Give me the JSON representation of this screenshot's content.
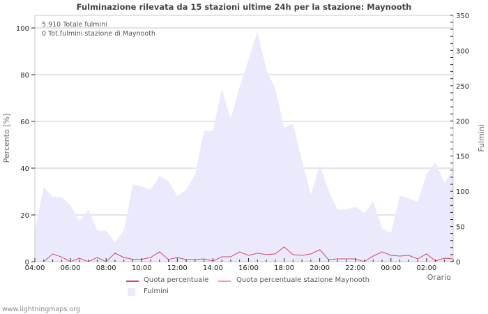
{
  "title": "Fulminazione rilevata da 15 stazioni ultime 24h per la stazione: Maynooth",
  "info": {
    "total": "5.910 Totale fulmini",
    "station_total": "0 Tot.fulmini stazione di Maynooth"
  },
  "axes": {
    "left_title": "Percento   [%]",
    "right_title": "Fulmini",
    "x_title": "Orario",
    "left_ticks": [
      "0",
      "20",
      "40",
      "60",
      "80",
      "100"
    ],
    "right_ticks": [
      "0",
      "50",
      "100",
      "150",
      "200",
      "250",
      "300",
      "350"
    ],
    "x_ticks": [
      "04:00",
      "06:00",
      "08:00",
      "10:00",
      "12:00",
      "14:00",
      "16:00",
      "18:00",
      "20:00",
      "22:00",
      "00:00",
      "02:00"
    ]
  },
  "legend": {
    "quota": "Quota percentuale",
    "quota_station": "Quota percentuale stazione Maynooth",
    "fulmini": "Fulmini"
  },
  "footer": "www.lightningmaps.org",
  "colors": {
    "quota_line": "#d04a63",
    "quota_station_line": "#f4a0a0",
    "fulmini_fill": "#eaeafc",
    "grid": "#c8c8c8"
  },
  "chart_data": {
    "type": "area",
    "title": "Fulminazione rilevata da 15 stazioni ultime 24h per la stazione: Maynooth",
    "xlabel": "Orario",
    "ylabel": "Percento [%]",
    "y2label": "Fulmini",
    "ylim": [
      0,
      105
    ],
    "y2lim": [
      0,
      350
    ],
    "grid": true,
    "legend_position": "bottom",
    "x": [
      "04:00",
      "04:30",
      "05:00",
      "05:30",
      "06:00",
      "06:30",
      "07:00",
      "07:30",
      "08:00",
      "08:30",
      "09:00",
      "09:30",
      "10:00",
      "10:30",
      "11:00",
      "11:30",
      "12:00",
      "12:30",
      "13:00",
      "13:30",
      "14:00",
      "14:30",
      "15:00",
      "15:30",
      "16:00",
      "16:30",
      "17:00",
      "17:30",
      "18:00",
      "18:30",
      "19:00",
      "19:30",
      "20:00",
      "20:30",
      "21:00",
      "21:30",
      "22:00",
      "22:30",
      "23:00",
      "23:30",
      "00:00",
      "00:30",
      "01:00",
      "01:30",
      "02:00",
      "02:30",
      "03:00",
      "03:30"
    ],
    "series": [
      {
        "name": "Fulmini",
        "axis": "right",
        "type": "area",
        "values": [
          44,
          106,
          92,
          92,
          80,
          58,
          74,
          44,
          44,
          28,
          44,
          110,
          107,
          102,
          122,
          115,
          93,
          102,
          124,
          186,
          186,
          245,
          203,
          248,
          287,
          327,
          273,
          246,
          191,
          196,
          144,
          95,
          137,
          101,
          74,
          74,
          78,
          69,
          86,
          47,
          41,
          94,
          90,
          85,
          124,
          141,
          112,
          131
        ]
      },
      {
        "name": "Quota percentuale",
        "axis": "left",
        "type": "line",
        "values": [
          null,
          0,
          3.3,
          2,
          0,
          1.5,
          0,
          1.8,
          0,
          3.6,
          1.8,
          1,
          1,
          1.8,
          4.2,
          0.9,
          1.8,
          0.9,
          0.9,
          1.2,
          0.3,
          2.1,
          2.1,
          4.2,
          2.7,
          3.6,
          3,
          3.3,
          6.3,
          3,
          2.7,
          3.3,
          5.1,
          0.9,
          1.2,
          1.2,
          1.2,
          0,
          2.4,
          4.2,
          2.7,
          2.4,
          2.7,
          1.2,
          3.3,
          0.3,
          1.5,
          1.2
        ]
      },
      {
        "name": "Quota percentuale stazione Maynooth",
        "axis": "left",
        "type": "line",
        "values": []
      }
    ]
  }
}
